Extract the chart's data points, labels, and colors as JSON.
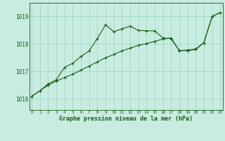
{
  "x": [
    0,
    1,
    2,
    3,
    4,
    5,
    6,
    7,
    8,
    9,
    10,
    11,
    12,
    13,
    14,
    15,
    16,
    17,
    18,
    19,
    20,
    21,
    22,
    23
  ],
  "line_jagged": [
    1016.1,
    1016.3,
    1016.55,
    1016.7,
    1017.15,
    1017.3,
    1017.55,
    1017.75,
    1018.2,
    1018.7,
    1018.45,
    1018.55,
    1018.65,
    1018.5,
    1018.48,
    1018.48,
    1018.22,
    1018.2,
    1017.76,
    1017.76,
    1017.8,
    1018.05,
    1019.0,
    1019.15
  ],
  "line_smooth": [
    1016.1,
    1016.3,
    1016.5,
    1016.65,
    1016.78,
    1016.9,
    1017.05,
    1017.2,
    1017.35,
    1017.5,
    1017.62,
    1017.75,
    1017.85,
    1017.95,
    1018.02,
    1018.1,
    1018.18,
    1018.22,
    1017.76,
    1017.78,
    1017.82,
    1018.05,
    1019.0,
    1019.15
  ],
  "line_color": "#1a5c1a",
  "bg_color": "#c8ede0",
  "grid_color": "#a8d8c8",
  "title": "Graphe pression niveau de la mer (hPa)",
  "yticks": [
    1016,
    1017,
    1018,
    1019
  ],
  "ylim": [
    1015.6,
    1019.5
  ],
  "xlim": [
    -0.3,
    23.3
  ]
}
